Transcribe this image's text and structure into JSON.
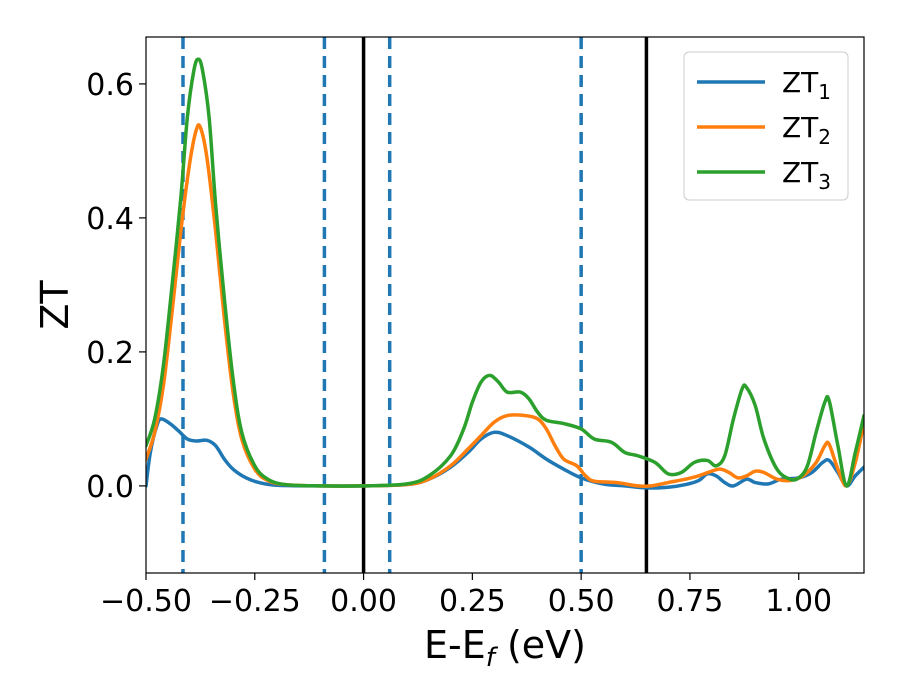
{
  "chart_data": {
    "type": "line",
    "title": "",
    "xlabel": {
      "main": "E-E",
      "sub": "f",
      "unit": " (eV)"
    },
    "ylabel": "ZT",
    "xlim": [
      -0.5,
      1.15
    ],
    "ylim": [
      -0.13,
      0.67
    ],
    "xticks": [
      -0.5,
      -0.25,
      0.0,
      0.25,
      0.5,
      0.75,
      1.0
    ],
    "xtick_labels": [
      "−0.50",
      "−0.25",
      "0.00",
      "0.25",
      "0.50",
      "0.75",
      "1.00"
    ],
    "yticks": [
      0.0,
      0.2,
      0.4,
      0.6
    ],
    "ytick_labels": [
      "0.0",
      "0.2",
      "0.4",
      "0.6"
    ],
    "grid": false,
    "legend_position": "top-right",
    "vlines": [
      {
        "x": -0.415,
        "style": "dashed",
        "color": "#1f77b4"
      },
      {
        "x": -0.09,
        "style": "dashed",
        "color": "#1f77b4"
      },
      {
        "x": 0.0,
        "style": "solid",
        "color": "#000000"
      },
      {
        "x": 0.06,
        "style": "dashed",
        "color": "#1f77b4"
      },
      {
        "x": 0.5,
        "style": "dashed",
        "color": "#1f77b4"
      },
      {
        "x": 0.65,
        "style": "solid",
        "color": "#000000"
      }
    ],
    "series": [
      {
        "name": "ZT",
        "sub": "1",
        "color": "#1f77b4",
        "points": [
          [
            -0.5,
            0.0
          ],
          [
            -0.49,
            0.05
          ],
          [
            -0.475,
            0.09
          ],
          [
            -0.465,
            0.1
          ],
          [
            -0.445,
            0.093
          ],
          [
            -0.425,
            0.082
          ],
          [
            -0.405,
            0.07
          ],
          [
            -0.385,
            0.067
          ],
          [
            -0.36,
            0.068
          ],
          [
            -0.34,
            0.06
          ],
          [
            -0.32,
            0.04
          ],
          [
            -0.3,
            0.025
          ],
          [
            -0.27,
            0.012
          ],
          [
            -0.24,
            0.005
          ],
          [
            -0.2,
            0.001
          ],
          [
            -0.1,
            0.0
          ],
          [
            0.0,
            0.0
          ],
          [
            0.1,
            0.002
          ],
          [
            0.15,
            0.01
          ],
          [
            0.2,
            0.028
          ],
          [
            0.24,
            0.05
          ],
          [
            0.27,
            0.07
          ],
          [
            0.3,
            0.08
          ],
          [
            0.33,
            0.075
          ],
          [
            0.38,
            0.058
          ],
          [
            0.42,
            0.04
          ],
          [
            0.46,
            0.025
          ],
          [
            0.5,
            0.012
          ],
          [
            0.55,
            0.003
          ],
          [
            0.6,
            0.0
          ],
          [
            0.65,
            -0.003
          ],
          [
            0.7,
            -0.002
          ],
          [
            0.74,
            0.002
          ],
          [
            0.77,
            0.008
          ],
          [
            0.79,
            0.018
          ],
          [
            0.81,
            0.015
          ],
          [
            0.83,
            0.005
          ],
          [
            0.85,
            0.0
          ],
          [
            0.88,
            0.01
          ],
          [
            0.9,
            0.005
          ],
          [
            0.93,
            0.003
          ],
          [
            0.96,
            0.01
          ],
          [
            1.0,
            0.012
          ],
          [
            1.03,
            0.02
          ],
          [
            1.055,
            0.035
          ],
          [
            1.07,
            0.038
          ],
          [
            1.09,
            0.02
          ],
          [
            1.11,
            0.0
          ],
          [
            1.13,
            0.015
          ],
          [
            1.15,
            0.028
          ]
        ]
      },
      {
        "name": "ZT",
        "sub": "2",
        "color": "#ff7f0e",
        "points": [
          [
            -0.5,
            0.04
          ],
          [
            -0.48,
            0.08
          ],
          [
            -0.46,
            0.15
          ],
          [
            -0.44,
            0.26
          ],
          [
            -0.42,
            0.38
          ],
          [
            -0.4,
            0.48
          ],
          [
            -0.385,
            0.53
          ],
          [
            -0.375,
            0.535
          ],
          [
            -0.36,
            0.49
          ],
          [
            -0.34,
            0.38
          ],
          [
            -0.32,
            0.25
          ],
          [
            -0.3,
            0.14
          ],
          [
            -0.28,
            0.07
          ],
          [
            -0.25,
            0.025
          ],
          [
            -0.22,
            0.008
          ],
          [
            -0.18,
            0.002
          ],
          [
            -0.1,
            0.0
          ],
          [
            0.0,
            0.0
          ],
          [
            0.1,
            0.002
          ],
          [
            0.15,
            0.01
          ],
          [
            0.2,
            0.03
          ],
          [
            0.24,
            0.055
          ],
          [
            0.27,
            0.075
          ],
          [
            0.3,
            0.095
          ],
          [
            0.33,
            0.105
          ],
          [
            0.37,
            0.105
          ],
          [
            0.4,
            0.1
          ],
          [
            0.42,
            0.085
          ],
          [
            0.44,
            0.06
          ],
          [
            0.46,
            0.04
          ],
          [
            0.49,
            0.03
          ],
          [
            0.51,
            0.015
          ],
          [
            0.53,
            0.007
          ],
          [
            0.58,
            0.005
          ],
          [
            0.63,
            0.0
          ],
          [
            0.66,
            0.0
          ],
          [
            0.7,
            0.005
          ],
          [
            0.74,
            0.01
          ],
          [
            0.77,
            0.015
          ],
          [
            0.8,
            0.022
          ],
          [
            0.82,
            0.025
          ],
          [
            0.84,
            0.02
          ],
          [
            0.86,
            0.012
          ],
          [
            0.88,
            0.015
          ],
          [
            0.9,
            0.022
          ],
          [
            0.92,
            0.02
          ],
          [
            0.95,
            0.01
          ],
          [
            0.98,
            0.008
          ],
          [
            1.01,
            0.015
          ],
          [
            1.04,
            0.035
          ],
          [
            1.06,
            0.06
          ],
          [
            1.07,
            0.062
          ],
          [
            1.09,
            0.025
          ],
          [
            1.11,
            0.0
          ],
          [
            1.13,
            0.035
          ],
          [
            1.15,
            0.095
          ]
        ]
      },
      {
        "name": "ZT",
        "sub": "3",
        "color": "#2ca02c",
        "points": [
          [
            -0.5,
            0.06
          ],
          [
            -0.48,
            0.1
          ],
          [
            -0.46,
            0.18
          ],
          [
            -0.44,
            0.3
          ],
          [
            -0.42,
            0.43
          ],
          [
            -0.405,
            0.55
          ],
          [
            -0.39,
            0.62
          ],
          [
            -0.38,
            0.637
          ],
          [
            -0.37,
            0.62
          ],
          [
            -0.355,
            0.55
          ],
          [
            -0.34,
            0.42
          ],
          [
            -0.32,
            0.28
          ],
          [
            -0.3,
            0.16
          ],
          [
            -0.28,
            0.08
          ],
          [
            -0.25,
            0.03
          ],
          [
            -0.22,
            0.01
          ],
          [
            -0.18,
            0.002
          ],
          [
            -0.1,
            0.0
          ],
          [
            0.0,
            0.0
          ],
          [
            0.1,
            0.003
          ],
          [
            0.15,
            0.015
          ],
          [
            0.2,
            0.045
          ],
          [
            0.23,
            0.085
          ],
          [
            0.25,
            0.125
          ],
          [
            0.27,
            0.155
          ],
          [
            0.29,
            0.165
          ],
          [
            0.31,
            0.155
          ],
          [
            0.33,
            0.14
          ],
          [
            0.36,
            0.14
          ],
          [
            0.38,
            0.13
          ],
          [
            0.4,
            0.11
          ],
          [
            0.42,
            0.098
          ],
          [
            0.46,
            0.093
          ],
          [
            0.5,
            0.085
          ],
          [
            0.53,
            0.07
          ],
          [
            0.57,
            0.065
          ],
          [
            0.6,
            0.05
          ],
          [
            0.63,
            0.045
          ],
          [
            0.67,
            0.035
          ],
          [
            0.7,
            0.018
          ],
          [
            0.73,
            0.02
          ],
          [
            0.76,
            0.035
          ],
          [
            0.79,
            0.038
          ],
          [
            0.81,
            0.03
          ],
          [
            0.83,
            0.045
          ],
          [
            0.85,
            0.1
          ],
          [
            0.87,
            0.145
          ],
          [
            0.88,
            0.147
          ],
          [
            0.9,
            0.12
          ],
          [
            0.92,
            0.07
          ],
          [
            0.95,
            0.025
          ],
          [
            0.98,
            0.01
          ],
          [
            1.0,
            0.012
          ],
          [
            1.02,
            0.03
          ],
          [
            1.04,
            0.08
          ],
          [
            1.06,
            0.125
          ],
          [
            1.07,
            0.127
          ],
          [
            1.09,
            0.06
          ],
          [
            1.11,
            0.0
          ],
          [
            1.13,
            0.05
          ],
          [
            1.15,
            0.105
          ]
        ]
      }
    ]
  }
}
